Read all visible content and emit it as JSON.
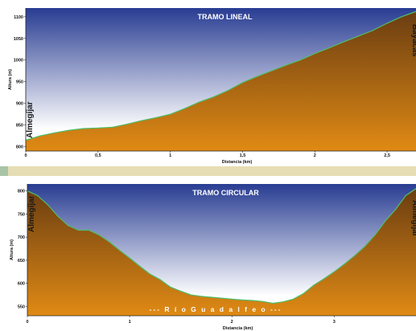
{
  "colors": {
    "sky_top": "#283c92",
    "sky_bottom": "#ffffff",
    "terrain_top": "#6a3d12",
    "terrain_bottom": "#e08a14",
    "profile_line": "#4fbd6a"
  },
  "chart_data": [
    {
      "type": "area",
      "title": "TRAMO LINEAL",
      "xlabel": "Distancia (km)",
      "ylabel": "Altura (m)",
      "xlim": [
        0,
        2.7
      ],
      "ylim": [
        790,
        1120
      ],
      "x_ticks": [
        "0",
        "0,5",
        "1",
        "1,5",
        "2",
        "2,5"
      ],
      "x_tick_values": [
        0,
        0.5,
        1,
        1.5,
        2,
        2.5
      ],
      "y_ticks": [
        "800",
        "850",
        "900",
        "950",
        "1000",
        "1050",
        "1100"
      ],
      "y_tick_values": [
        800,
        850,
        900,
        950,
        1000,
        1050,
        1100
      ],
      "annotations": [
        "Almegíjar",
        "Bayacas"
      ],
      "x": [
        0,
        0.1,
        0.2,
        0.3,
        0.4,
        0.5,
        0.6,
        0.7,
        0.8,
        0.9,
        1.0,
        1.1,
        1.2,
        1.3,
        1.4,
        1.5,
        1.6,
        1.7,
        1.8,
        1.9,
        2.0,
        2.1,
        2.2,
        2.3,
        2.4,
        2.5,
        2.6,
        2.7
      ],
      "y": [
        815,
        825,
        832,
        838,
        842,
        843,
        845,
        852,
        860,
        867,
        875,
        888,
        903,
        915,
        930,
        948,
        962,
        975,
        988,
        1000,
        1015,
        1028,
        1042,
        1055,
        1068,
        1085,
        1100,
        1112
      ]
    },
    {
      "type": "area",
      "title": "TRAMO CIRCULAR",
      "xlabel": "Distancia (km)",
      "ylabel": "Altura (m)",
      "xlim": [
        0,
        3.8
      ],
      "ylim": [
        530,
        815
      ],
      "x_ticks": [
        "0",
        "1",
        "2",
        "3"
      ],
      "x_tick_values": [
        0,
        1,
        2,
        3
      ],
      "y_ticks": [
        "550",
        "600",
        "650",
        "700",
        "750",
        "800"
      ],
      "y_tick_values": [
        550,
        600,
        650,
        700,
        750,
        800
      ],
      "annotations": [
        "Almegíjar",
        "--- R í o     G u a d a l f e o ---",
        "Almegíjar"
      ],
      "x": [
        0,
        0.1,
        0.2,
        0.3,
        0.4,
        0.5,
        0.6,
        0.7,
        0.8,
        0.9,
        1.0,
        1.1,
        1.2,
        1.3,
        1.4,
        1.5,
        1.6,
        1.7,
        1.8,
        1.9,
        2.0,
        2.1,
        2.2,
        2.3,
        2.4,
        2.5,
        2.6,
        2.7,
        2.8,
        2.9,
        3.0,
        3.1,
        3.2,
        3.3,
        3.4,
        3.5,
        3.6,
        3.7,
        3.8
      ],
      "y": [
        800,
        790,
        770,
        745,
        725,
        715,
        715,
        705,
        690,
        672,
        655,
        637,
        620,
        608,
        592,
        583,
        575,
        572,
        570,
        568,
        566,
        564,
        563,
        561,
        557,
        560,
        566,
        578,
        596,
        610,
        625,
        642,
        660,
        680,
        705,
        735,
        760,
        790,
        805
      ]
    }
  ]
}
